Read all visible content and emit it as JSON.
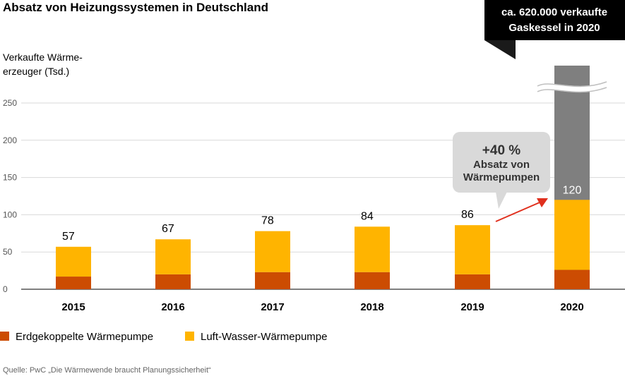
{
  "chart_data": {
    "type": "bar",
    "stacked": true,
    "title": "Absatz von Heizungssystemen in Deutschland",
    "ylabel_lines": [
      "Verkaufte Wärme-",
      "erzeuger (Tsd.)"
    ],
    "xlabel": "",
    "ylim": [
      0,
      275
    ],
    "yticks": [
      0,
      50,
      100,
      150,
      200,
      250
    ],
    "categories": [
      "2015",
      "2016",
      "2017",
      "2018",
      "2019",
      "2020"
    ],
    "series": [
      {
        "name": "Erdgekoppelte Wärmepumpe",
        "color": "#cc4c02",
        "values": [
          17,
          20,
          23,
          23,
          20,
          26
        ]
      },
      {
        "name": "Luft-Wasser-Wärmepumpe",
        "color": "#ffb400",
        "values": [
          40,
          47,
          55,
          61,
          66,
          94
        ]
      }
    ],
    "totals": [
      "57",
      "67",
      "78",
      "84",
      "86",
      "120"
    ],
    "gas_bar": {
      "category": "2020",
      "color": "#7f7f7f",
      "note": "axis break"
    },
    "callout_gas": [
      "ca. 620.000 verkaufte",
      "Gaskessel in 2020"
    ],
    "bubble": {
      "big": "+40 %",
      "lines": [
        "Absatz von",
        "Wärmepumpen"
      ]
    },
    "arrow_color": "#e0301e",
    "source": "Quelle: PwC „Die Wärmewende braucht Planungssicherheit“"
  }
}
